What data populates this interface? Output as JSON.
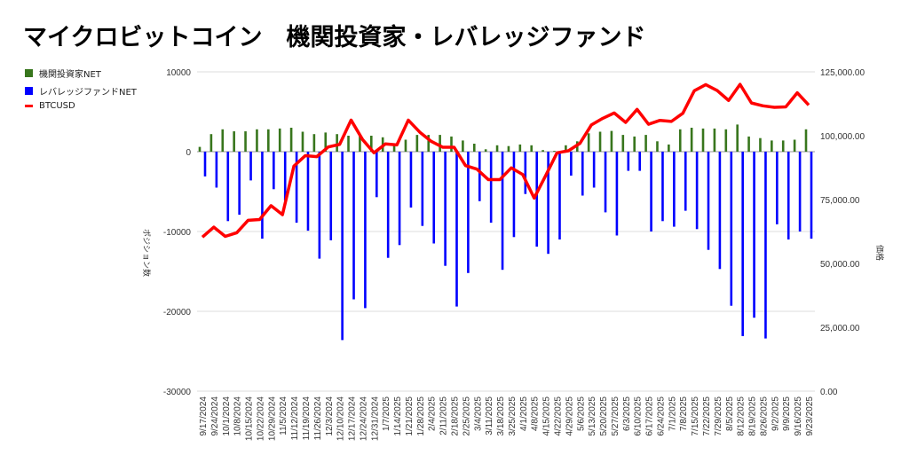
{
  "chart_data": {
    "type": "bar+line",
    "title": "マイクロビットコイン　機関投資家・レバレッジファンド",
    "ylabel_left": "ポジション数",
    "ylabel_right": "価格",
    "ylim_left": [
      -30000,
      10000
    ],
    "ylim_right": [
      0,
      125000
    ],
    "left_ticks": [
      "10000",
      "0",
      "-10000",
      "-20000",
      "-30000"
    ],
    "left_tick_values": [
      10000,
      0,
      -10000,
      -20000,
      -30000
    ],
    "right_ticks": [
      "125,000.00",
      "100,000.00",
      "75,000.00",
      "50,000.00",
      "25,000.00",
      "0.00"
    ],
    "right_tick_values": [
      125000,
      100000,
      75000,
      50000,
      25000,
      0
    ],
    "legend_position": "top-left",
    "categories": [
      "9/17/2024",
      "9/24/2024",
      "10/1/2024",
      "10/8/2024",
      "10/15/2024",
      "10/22/2024",
      "10/29/2024",
      "11/5/2024",
      "11/12/2024",
      "11/19/2024",
      "11/26/2024",
      "12/3/2024",
      "12/10/2024",
      "12/17/2024",
      "12/24/2024",
      "12/31/2024",
      "1/7/2025",
      "1/14/2025",
      "1/21/2025",
      "1/28/2025",
      "2/4/2025",
      "2/11/2025",
      "2/18/2025",
      "2/25/2025",
      "3/4/2025",
      "3/11/2025",
      "3/18/2025",
      "3/25/2025",
      "4/1/2025",
      "4/8/2025",
      "4/15/2025",
      "4/22/2025",
      "4/29/2025",
      "5/6/2025",
      "5/13/2025",
      "5/20/2025",
      "5/27/2025",
      "6/3/2025",
      "6/10/2025",
      "6/17/2025",
      "6/24/2025",
      "7/1/2025",
      "7/8/2025",
      "7/15/2025",
      "7/22/2025",
      "7/29/2025",
      "8/5/2025",
      "8/12/2025",
      "8/19/2025",
      "8/26/2025",
      "9/2/2025",
      "9/9/2025",
      "9/16/2025",
      "9/23/2025"
    ],
    "series": [
      {
        "name": "機関投資家NET",
        "type": "bar",
        "axis": "left",
        "color": "#38761d",
        "values": [
          600,
          2200,
          2800,
          2550,
          2550,
          2800,
          2800,
          2900,
          3000,
          2500,
          2200,
          2400,
          2200,
          2000,
          2000,
          2000,
          1800,
          1000,
          1500,
          2100,
          2100,
          2100,
          1900,
          1400,
          1000,
          300,
          800,
          700,
          900,
          800,
          200,
          100,
          800,
          1300,
          2300,
          2500,
          2600,
          2100,
          1900,
          2100,
          1300,
          900,
          2800,
          3000,
          2900,
          2900,
          2800,
          3400,
          1900,
          1700,
          1400,
          1400,
          1500,
          2800
        ]
      },
      {
        "name": "レバレッジファンドNET",
        "type": "bar",
        "axis": "left",
        "color": "#0000ff",
        "values": [
          -3100,
          -4500,
          -8700,
          -7900,
          -3600,
          -10900,
          -4700,
          -6100,
          -8900,
          -9900,
          -13400,
          -11100,
          -23600,
          -18500,
          -19600,
          -5700,
          -13300,
          -11700,
          -7000,
          -9300,
          -11500,
          -14300,
          -19400,
          -15200,
          -6200,
          -8900,
          -14800,
          -10700,
          -5300,
          -11900,
          -12800,
          -11000,
          -3000,
          -5500,
          -4500,
          -7600,
          -10500,
          -2400,
          -2400,
          -10000,
          -8700,
          -9400,
          -7400,
          -9700,
          -12300,
          -14700,
          -19300,
          -23100,
          -20800,
          -23400,
          -9100,
          -11000,
          -10000,
          -10900
        ]
      },
      {
        "name": "BTCUSD",
        "type": "line",
        "axis": "right",
        "color": "#ff0000",
        "values": [
          60300,
          64200,
          60600,
          62000,
          66900,
          67200,
          72600,
          69100,
          88100,
          92200,
          91800,
          95600,
          96600,
          106100,
          98500,
          93300,
          96800,
          96400,
          106100,
          101400,
          97800,
          95500,
          95500,
          88300,
          86900,
          82800,
          82800,
          87400,
          84800,
          75600,
          84300,
          93300,
          94100,
          97000,
          104200,
          106800,
          108900,
          105200,
          110300,
          104500,
          106000,
          105600,
          108800,
          117600,
          120000,
          117700,
          113800,
          120100,
          112800,
          111700,
          111100,
          111300,
          116800,
          112000
        ]
      }
    ]
  }
}
